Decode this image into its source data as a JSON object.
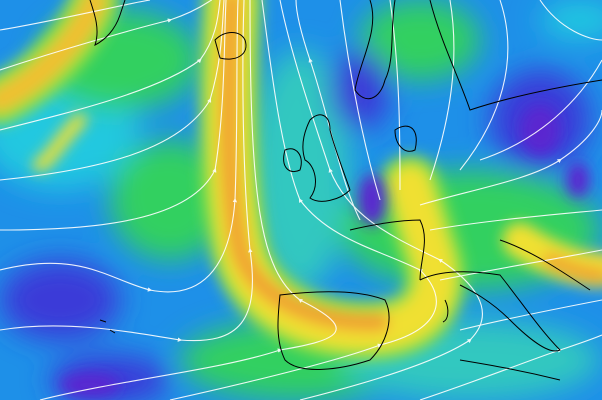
{
  "map": {
    "colors": {
      "background": "#1e90e8",
      "deep_blue": "#3a3ad8",
      "violet": "#5a28d0",
      "cyan": "#20c8e0",
      "green": "#30d060",
      "lime": "#90e040",
      "yellow": "#f0e030",
      "orange": "#f0a030",
      "streamline": "#ffffff",
      "coastline": "#000000"
    }
  }
}
